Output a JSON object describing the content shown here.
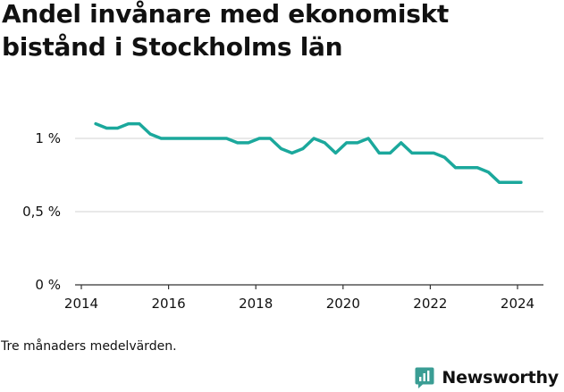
{
  "title": "Andel invånare med ekonomiskt bistånd i Stockholms län",
  "footnote": "Tre månaders medelvärden.",
  "brand": {
    "name": "Newsworthy",
    "icon": "newsworthy-logo-icon",
    "color": "#3a9d94"
  },
  "colors": {
    "line": "#1ba89c",
    "grid": "#dcdcdc",
    "axis": "#333333",
    "text": "#111111"
  },
  "chart_data": {
    "type": "line",
    "title": "Andel invånare med ekonomiskt bistånd i Stockholms län",
    "xlabel": "",
    "ylabel": "",
    "x_ticks": [
      2014,
      2016,
      2018,
      2020,
      2022,
      2024
    ],
    "y_ticks": [
      {
        "value": 0,
        "label": "0 %"
      },
      {
        "value": 0.5,
        "label": "0,5 %"
      },
      {
        "value": 1,
        "label": "1 %"
      }
    ],
    "xlim": [
      2014,
      2024.7
    ],
    "ylim": [
      0,
      1.15
    ],
    "grid": true,
    "series": [
      {
        "x": [
          2014.33,
          2014.58,
          2014.83,
          2015.08,
          2015.33,
          2015.58,
          2015.83,
          2016.08,
          2016.33,
          2016.58,
          2016.83,
          2017.08,
          2017.33,
          2017.58,
          2017.83,
          2018.08,
          2018.33,
          2018.58,
          2018.83,
          2019.08,
          2019.33,
          2019.58,
          2019.83,
          2020.08,
          2020.33,
          2020.58,
          2020.83,
          2021.08,
          2021.33,
          2021.58,
          2021.83,
          2022.08,
          2022.33,
          2022.58,
          2022.83,
          2023.08,
          2023.33,
          2023.58,
          2023.83,
          2024.08
        ],
        "values": [
          1.1,
          1.07,
          1.07,
          1.1,
          1.1,
          1.03,
          1.0,
          1.0,
          1.0,
          1.0,
          1.0,
          1.0,
          1.0,
          0.97,
          0.97,
          1.0,
          1.0,
          0.93,
          0.9,
          0.93,
          1.0,
          0.97,
          0.9,
          0.97,
          0.97,
          1.0,
          0.9,
          0.9,
          0.97,
          0.9,
          0.9,
          0.9,
          0.87,
          0.8,
          0.8,
          0.8,
          0.77,
          0.7,
          0.7,
          0.7
        ]
      }
    ]
  }
}
